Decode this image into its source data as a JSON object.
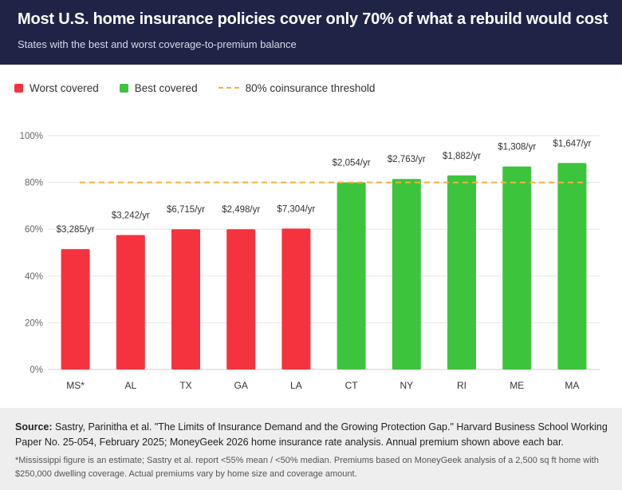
{
  "header": {
    "title": "Most U.S. home insurance policies cover only 70% of what a rebuild would cost",
    "subtitle": "States with the best and worst coverage-to-premium balance"
  },
  "legend": {
    "worst": "Worst covered",
    "best": "Best covered",
    "threshold": "80% coinsurance threshold"
  },
  "colors": {
    "worst": "#f5333f",
    "best": "#3dc43d",
    "threshold": "#f0b23c",
    "header_bg": "#1f2447"
  },
  "chart_data": {
    "type": "bar",
    "categories": [
      "MS*",
      "AL",
      "TX",
      "GA",
      "LA",
      "CT",
      "NY",
      "RI",
      "ME",
      "MA"
    ],
    "values": [
      51.5,
      57.5,
      60,
      60,
      60.3,
      80,
      81.5,
      83,
      86.8,
      88.3
    ],
    "group": [
      "worst",
      "worst",
      "worst",
      "worst",
      "worst",
      "best",
      "best",
      "best",
      "best",
      "best"
    ],
    "data_labels": [
      "$3,285/yr",
      "$3,242/yr",
      "$6,715/yr",
      "$2,498/yr",
      "$7,304/yr",
      "$2,054/yr",
      "$2,763/yr",
      "$1,882/yr",
      "$1,308/yr",
      "$1,647/yr"
    ],
    "y_ticks": [
      "0%",
      "20%",
      "40%",
      "60%",
      "80%",
      "100%"
    ],
    "ylim": [
      0,
      100
    ],
    "threshold": 80,
    "grid": true
  },
  "footer": {
    "source_label": "Source:",
    "source_text": " Sastry, Parinitha et al. \"The Limits of Insurance Demand and the Growing Protection Gap.\" Harvard Business School Working Paper No. 25-054, February 2025; MoneyGeek 2026 home insurance rate analysis. Annual premium shown above each bar.",
    "note": "*Mississippi figure is an estimate; Sastry et al. report <55% mean / <50% median. Premiums based on MoneyGeek analysis of a 2,500 sq ft home with $250,000 dwelling coverage. Actual premiums vary by home size and coverage amount."
  }
}
